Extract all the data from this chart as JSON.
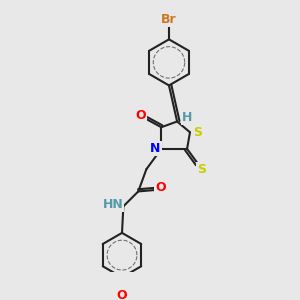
{
  "background_color": "#e8e8e8",
  "atom_colors": {
    "Br": "#cc7722",
    "O": "#ff0000",
    "N": "#0000ff",
    "S": "#cccc00",
    "C": "#000000",
    "H": "#5599aa"
  },
  "bond_color": "#222222",
  "bond_width": 1.5,
  "font_size_atom": 9
}
